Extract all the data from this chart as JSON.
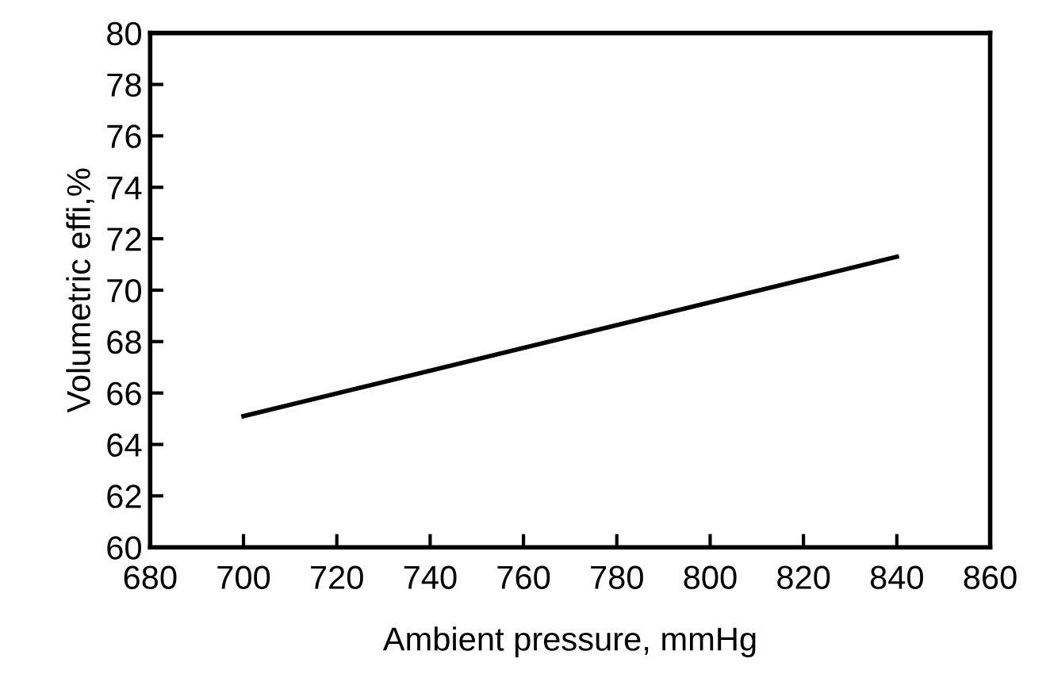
{
  "chart_data": {
    "type": "line",
    "xlabel": "Ambient pressure, mmHg",
    "ylabel": "Volumetric effi,%",
    "x": [
      700,
      840
    ],
    "series": [
      {
        "color": "#000000",
        "values": [
          65.1,
          71.3
        ]
      }
    ],
    "xlim": [
      680,
      860
    ],
    "xticks": [
      680,
      700,
      720,
      740,
      760,
      780,
      800,
      820,
      840,
      860
    ],
    "ylim": [
      60,
      80
    ],
    "yticks": [
      60,
      62,
      64,
      66,
      68,
      70,
      72,
      74,
      76,
      78,
      80
    ],
    "grid": false,
    "legend": false,
    "marker": "none",
    "line_style": "solid"
  }
}
